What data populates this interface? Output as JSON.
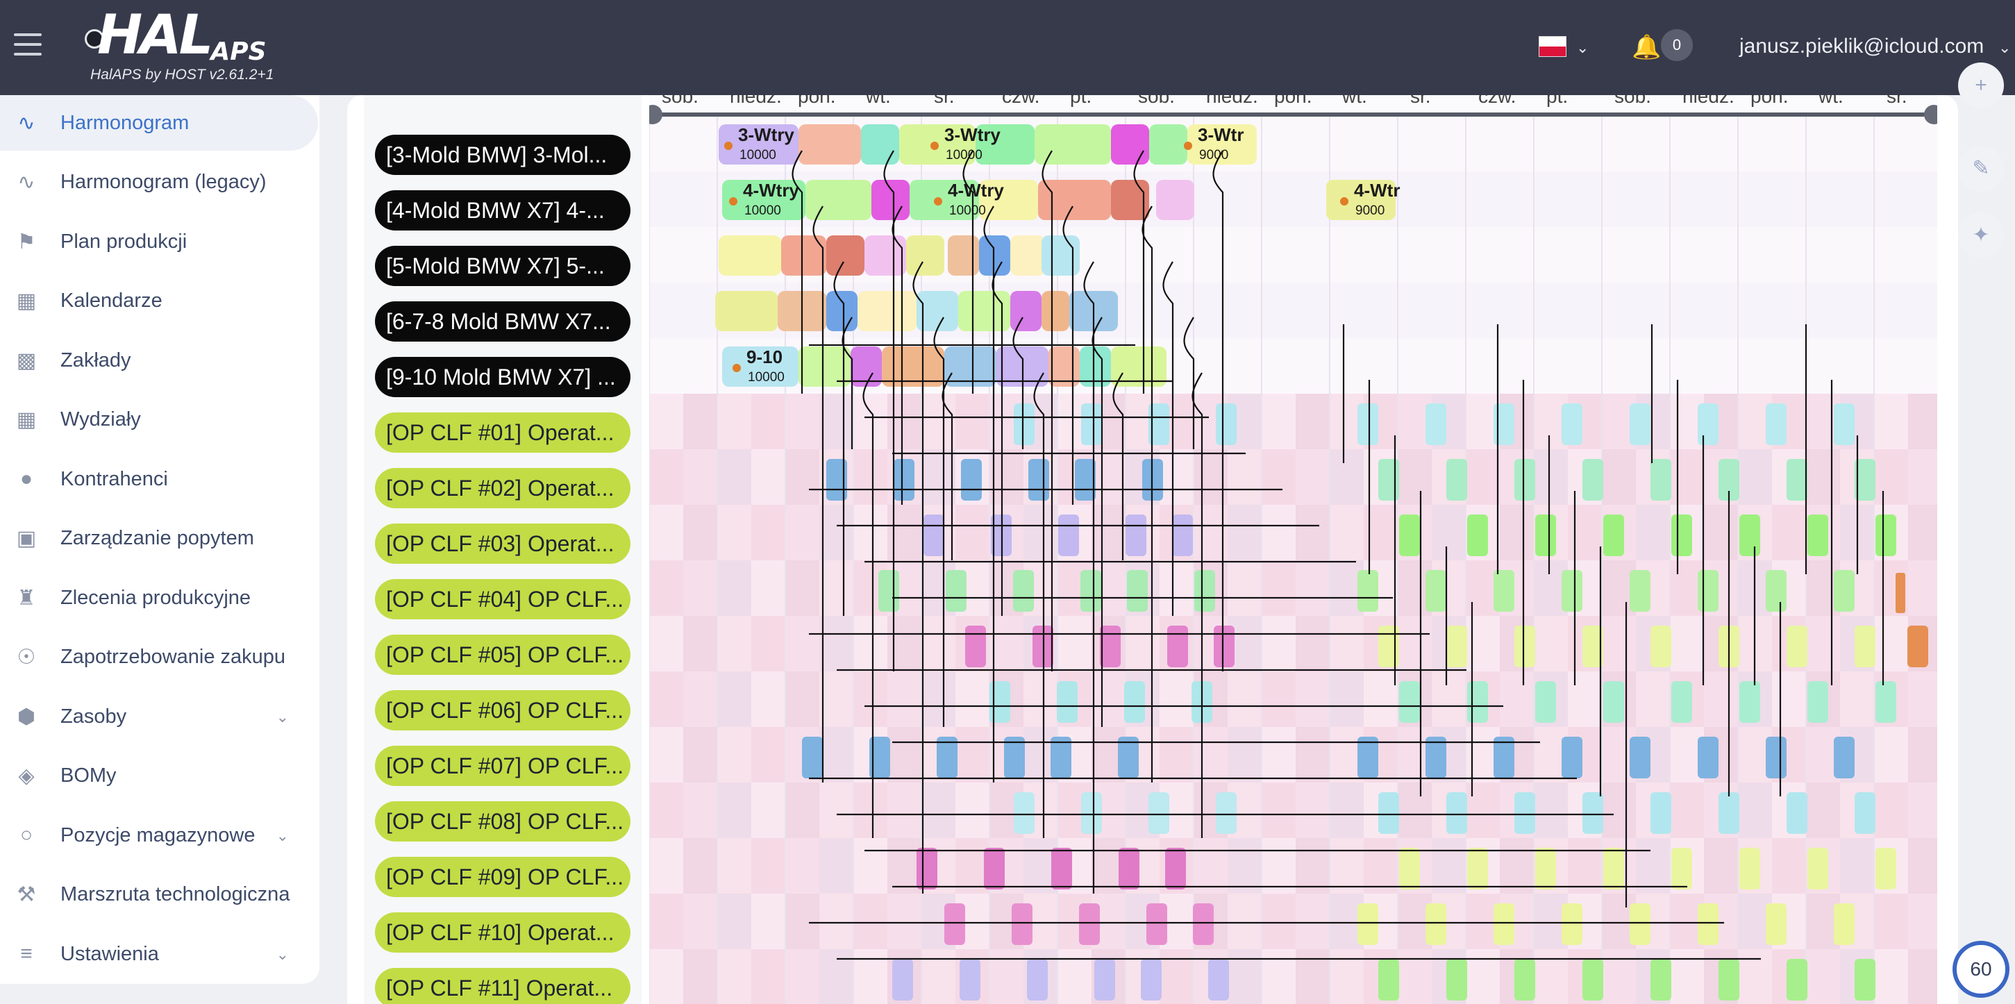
{
  "header": {
    "logo_text": "HAL",
    "logo_suffix": "APS",
    "version": "HalAPS by HOST v2.61.2+1",
    "notifications_count": "0",
    "user_email": "janusz.pieklik@icloud.com",
    "language": "PL"
  },
  "sidebar": {
    "items": [
      {
        "label": "Harmonogram",
        "icon": "trend-icon",
        "active": true
      },
      {
        "label": "Harmonogram (legacy)",
        "icon": "trend-icon"
      },
      {
        "label": "Plan produkcji",
        "icon": "signpost-icon"
      },
      {
        "label": "Kalendarze",
        "icon": "calendar-icon"
      },
      {
        "label": "Zakłady",
        "icon": "factory-icon"
      },
      {
        "label": "Wydziały",
        "icon": "building-icon"
      },
      {
        "label": "Kontrahenci",
        "icon": "people-icon"
      },
      {
        "label": "Zarządzanie popytem",
        "icon": "bag-icon"
      },
      {
        "label": "Zlecenia produkcyjne",
        "icon": "worker-icon"
      },
      {
        "label": "Zapotrzebowanie zakupu",
        "icon": "cart-icon"
      },
      {
        "label": "Zasoby",
        "icon": "hexagon-icon",
        "expandable": true
      },
      {
        "label": "BOMy",
        "icon": "layers-icon"
      },
      {
        "label": "Pozycje magazynowe",
        "icon": "bulb-icon",
        "expandable": true
      },
      {
        "label": "Marszruta technologiczna",
        "icon": "wrench-icon"
      },
      {
        "label": "Ustawienia",
        "icon": "sliders-icon",
        "expandable": true
      }
    ]
  },
  "gantt": {
    "days": [
      "sob.",
      "niedz.",
      "pon.",
      "wt.",
      "śr.",
      "czw.",
      "pt.",
      "sob.",
      "niedz.",
      "pon.",
      "wt.",
      "śr.",
      "czw.",
      "pt.",
      "sob.",
      "niedz.",
      "pon.",
      "wt.",
      "śr."
    ],
    "rows": [
      {
        "label": "[3-Mold BMW] 3-Mol...",
        "type": "mold"
      },
      {
        "label": "[4-Mold BMW X7] 4-...",
        "type": "mold"
      },
      {
        "label": "[5-Mold BMW X7] 5-...",
        "type": "mold"
      },
      {
        "label": "[6-7-8 Mold BMW X7...",
        "type": "mold"
      },
      {
        "label": "[9-10 Mold BMW X7] ...",
        "type": "mold"
      },
      {
        "label": "[OP CLF #01] Operat...",
        "type": "op"
      },
      {
        "label": "[OP CLF #02] Operat...",
        "type": "op"
      },
      {
        "label": "[OP CLF #03] Operat...",
        "type": "op"
      },
      {
        "label": "[OP CLF #04] OP CLF...",
        "type": "op"
      },
      {
        "label": "[OP CLF #05] OP CLF...",
        "type": "op"
      },
      {
        "label": "[OP CLF #06] OP CLF...",
        "type": "op"
      },
      {
        "label": "[OP CLF #07] OP CLF...",
        "type": "op"
      },
      {
        "label": "[OP CLF #08] OP CLF...",
        "type": "op"
      },
      {
        "label": "[OP CLF #09] OP CLF...",
        "type": "op"
      },
      {
        "label": "[OP CLF #10] Operat...",
        "type": "op"
      },
      {
        "label": "[OP CLF #11] Operat...",
        "type": "op"
      }
    ],
    "task_labels": [
      {
        "name": "3-Wtry",
        "qty": "10000"
      },
      {
        "name": "3-Wtry",
        "qty": "10000"
      },
      {
        "name": "3-Wtr",
        "qty": "9000"
      },
      {
        "name": "4-Wtry",
        "qty": "10000"
      },
      {
        "name": "4-Wtry",
        "qty": "10000"
      },
      {
        "name": "4-Wtr",
        "qty": "9000"
      },
      {
        "name": "9-10",
        "qty": "10000"
      }
    ]
  },
  "tools": {
    "fps": "60"
  },
  "colors": {
    "topbar": "#373a4b",
    "active_nav": "#3c72c9",
    "op_label": "#c2dc45",
    "mold_label": "#0a0a0a",
    "shift_pink": "#f3d3e2"
  }
}
